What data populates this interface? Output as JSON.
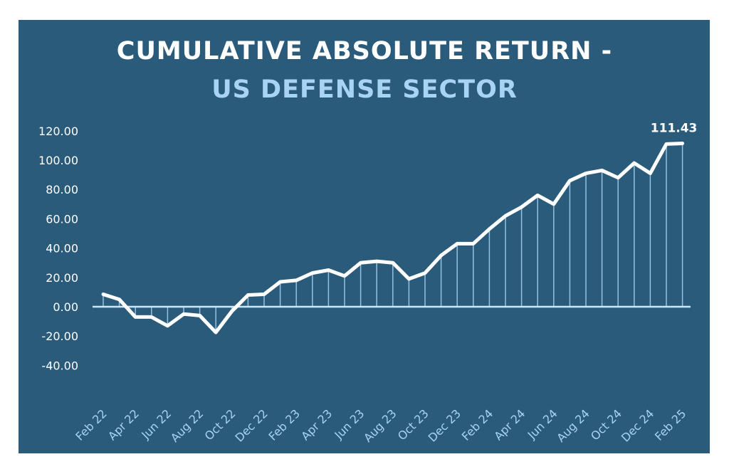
{
  "chart_data": {
    "type": "line",
    "title": "CUMULATIVE ABSOLUTE RETURN -",
    "subtitle": "US DEFENSE SECTOR",
    "xlabel": "",
    "ylabel": "",
    "ylim": [
      -40,
      120
    ],
    "yticks": [
      "120.00",
      "100.00",
      "80.00",
      "60.00",
      "40.00",
      "20.00",
      "0.00",
      "-20.00",
      "-40.00"
    ],
    "ytick_values": [
      120,
      100,
      80,
      60,
      40,
      20,
      0,
      -20,
      -40
    ],
    "xtick_labels": [
      "Feb 22",
      "Apr 22",
      "Jun 22",
      "Aug 22",
      "Oct 22",
      "Dec 22",
      "Feb 23",
      "Apr 23",
      "Jun 23",
      "Aug 23",
      "Oct 23",
      "Dec 23",
      "Feb 24",
      "Apr 24",
      "Jun 24",
      "Aug 24",
      "Oct 24",
      "Dec 24",
      "Feb 25"
    ],
    "x": [
      "Feb 22",
      "Mar 22",
      "Apr 22",
      "May 22",
      "Jun 22",
      "Jul 22",
      "Aug 22",
      "Sep 22",
      "Oct 22",
      "Nov 22",
      "Dec 22",
      "Jan 23",
      "Feb 23",
      "Mar 23",
      "Apr 23",
      "May 23",
      "Jun 23",
      "Jul 23",
      "Aug 23",
      "Sep 23",
      "Oct 23",
      "Nov 23",
      "Dec 23",
      "Jan 24",
      "Feb 24",
      "Mar 24",
      "Apr 24",
      "May 24",
      "Jun 24",
      "Jul 24",
      "Aug 24",
      "Sep 24",
      "Oct 24",
      "Nov 24",
      "Dec 24",
      "Jan 25",
      "Feb 25"
    ],
    "series": [
      {
        "name": "Cumulative Absolute Return",
        "values": [
          8.5,
          5,
          -7,
          -7,
          -13,
          -5,
          -6,
          -17.5,
          -3,
          8,
          8.5,
          17,
          18,
          23,
          25,
          21,
          30,
          31,
          30,
          19,
          23,
          35,
          43,
          43,
          53,
          62,
          68,
          76,
          70,
          86,
          91,
          93,
          88,
          98,
          91,
          111,
          111.43
        ]
      }
    ],
    "annotations": [
      {
        "label": "111.43",
        "x": "Feb 25"
      }
    ],
    "grid": false,
    "colors": {
      "background": "#2b5b7b",
      "line": "#ffffff",
      "drop_lines": "#a9d3f2",
      "subtitle": "#a9d3f2"
    }
  }
}
